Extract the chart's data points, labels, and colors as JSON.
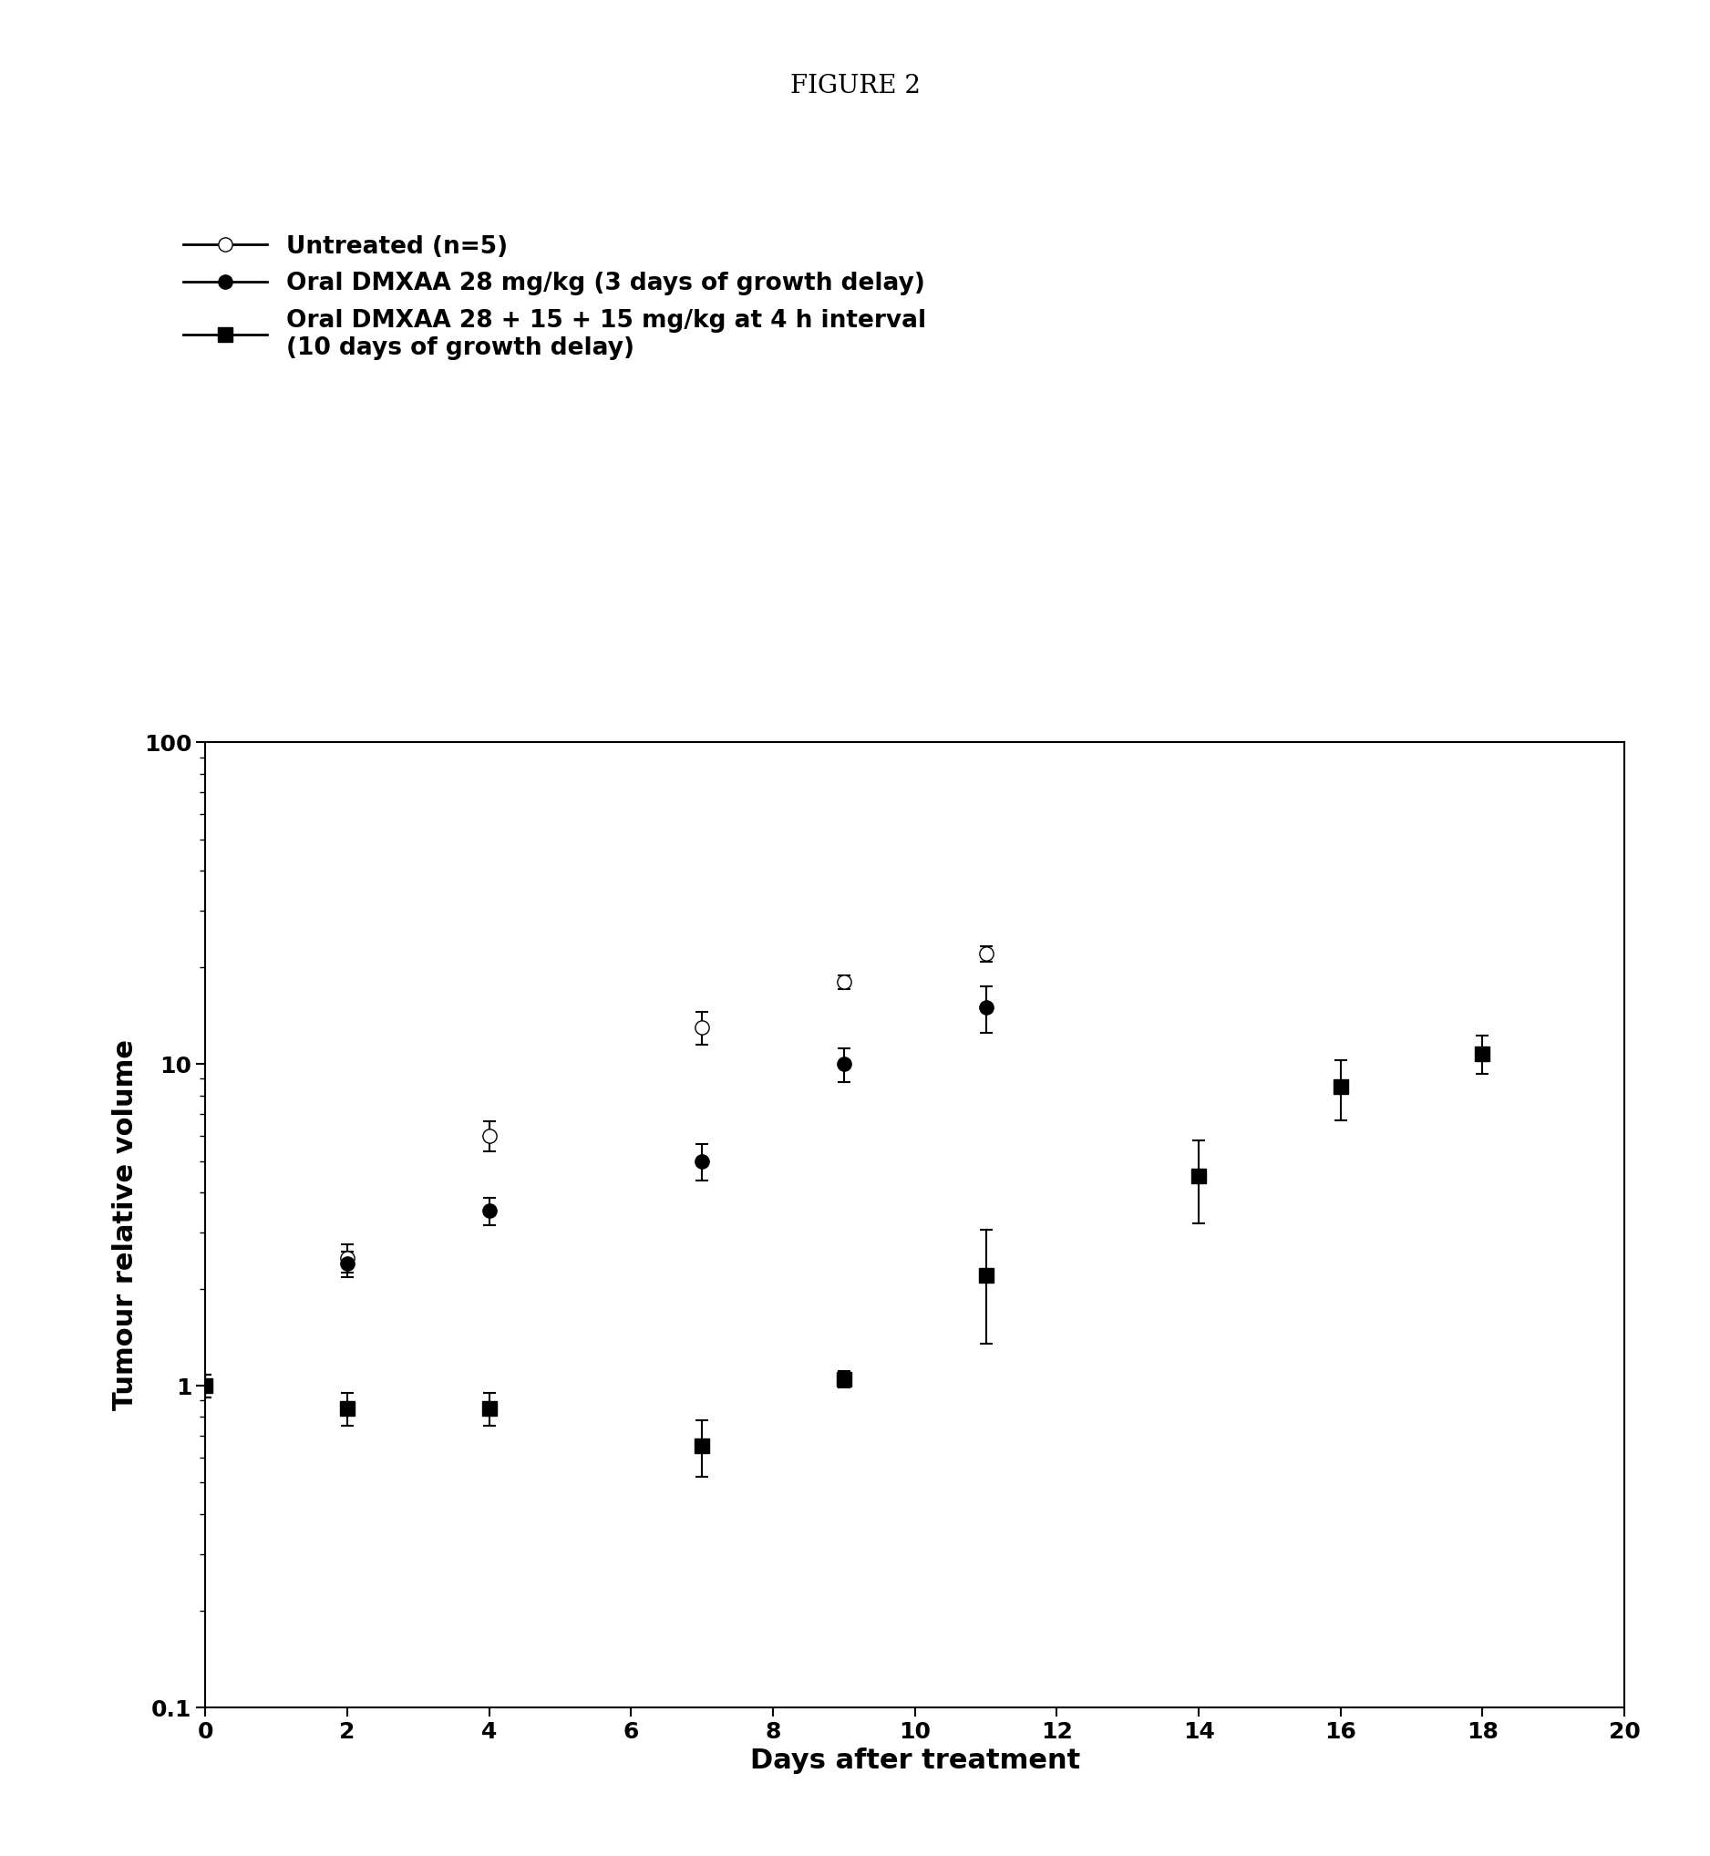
{
  "title": "FIGURE 2",
  "xlabel": "Days after treatment",
  "ylabel": "Tumour relative volume",
  "xlim": [
    0,
    20
  ],
  "ylim": [
    0.1,
    100
  ],
  "xticks": [
    0,
    2,
    4,
    6,
    8,
    10,
    12,
    14,
    16,
    18,
    20
  ],
  "series": [
    {
      "label": "Untreated (n=5)",
      "marker": "o",
      "markerfacecolor": "white",
      "markeredgecolor": "black",
      "linecolor": "black",
      "x": [
        0,
        2,
        4,
        7,
        9,
        11
      ],
      "y": [
        1.0,
        2.5,
        6.0,
        13.0,
        18.0,
        22.0
      ],
      "yerr": [
        0.08,
        0.25,
        0.65,
        1.5,
        0.9,
        1.2
      ]
    },
    {
      "label": "Oral DMXAA 28 mg/kg (3 days of growth delay)",
      "marker": "o",
      "markerfacecolor": "black",
      "markeredgecolor": "black",
      "linecolor": "black",
      "x": [
        0,
        2,
        4,
        7,
        9,
        11
      ],
      "y": [
        1.0,
        2.4,
        3.5,
        5.0,
        10.0,
        15.0
      ],
      "yerr": [
        0.08,
        0.22,
        0.35,
        0.65,
        1.2,
        2.5
      ]
    },
    {
      "label": "Oral DMXAA 28 + 15 + 15 mg/kg at 4 h interval\n(10 days of growth delay)",
      "marker": "s",
      "markerfacecolor": "black",
      "markeredgecolor": "black",
      "linecolor": "black",
      "x": [
        0,
        2,
        4,
        7,
        9,
        11,
        14,
        16,
        18
      ],
      "y": [
        1.0,
        0.85,
        0.85,
        0.65,
        1.05,
        2.2,
        4.5,
        8.5,
        10.8
      ],
      "yerr": [
        0.08,
        0.1,
        0.1,
        0.13,
        0.06,
        0.85,
        1.3,
        1.8,
        1.5
      ]
    }
  ],
  "legend_labels": [
    "Untreated (n=5)",
    "Oral DMXAA 28 mg/kg (3 days of growth delay)",
    "Oral DMXAA 28 + 15 + 15 mg/kg at 4 h interval \n(10 days of growth delay)"
  ],
  "background_color": "#ffffff",
  "fontsize_title": 20,
  "fontsize_labels": 22,
  "fontsize_ticks": 18,
  "fontsize_legend": 19,
  "markersize": 11,
  "linewidth": 2.0
}
